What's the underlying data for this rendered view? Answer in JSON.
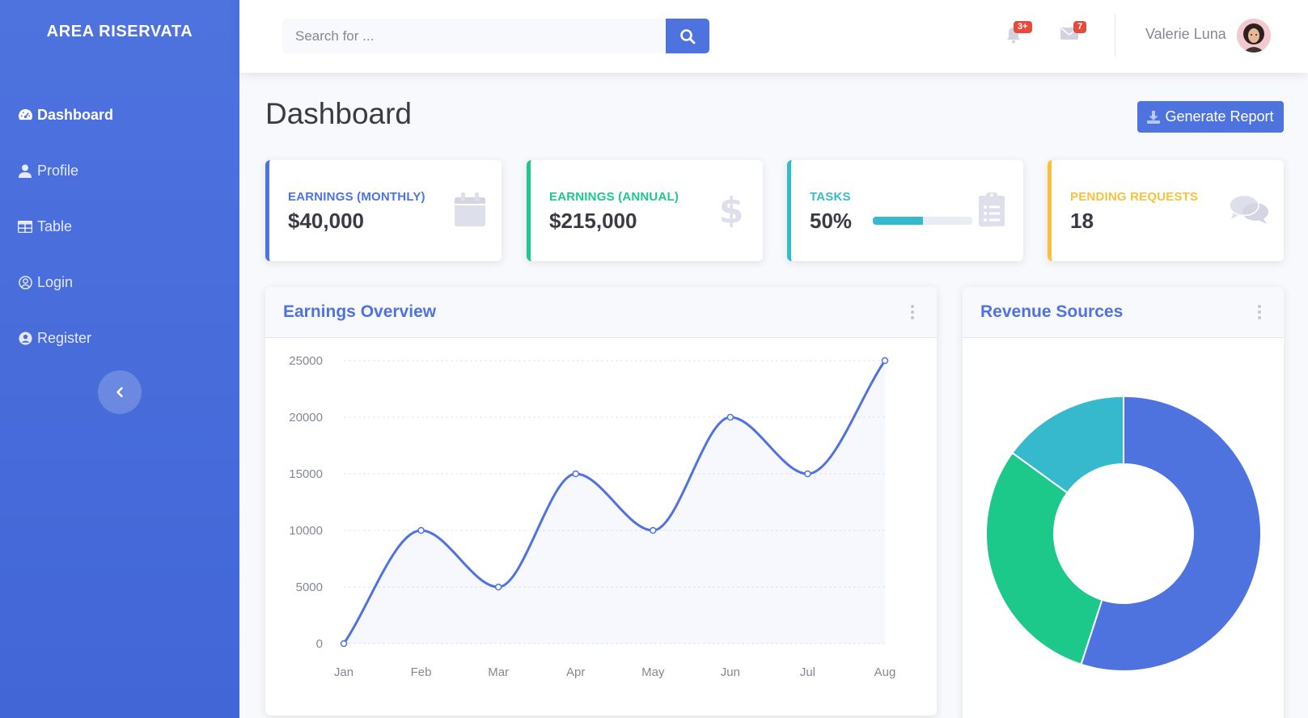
{
  "sidebar": {
    "brand": "AREA RISERVATA",
    "items": [
      {
        "label": "Dashboard",
        "icon": "tachometer-icon",
        "active": true
      },
      {
        "label": "Profile",
        "icon": "user-icon",
        "active": false
      },
      {
        "label": "Table",
        "icon": "table-icon",
        "active": false
      },
      {
        "label": "Login",
        "icon": "user-circle-outline-icon",
        "active": false
      },
      {
        "label": "Register",
        "icon": "user-circle-icon",
        "active": false
      }
    ],
    "toggle_icon": "chevron-left-icon"
  },
  "topbar": {
    "search_placeholder": "Search for ...",
    "alerts_badge": "3+",
    "messages_badge": "7",
    "user_name": "Valerie Luna"
  },
  "page": {
    "title": "Dashboard",
    "report_button": "Generate Report"
  },
  "cards": [
    {
      "label": "Earnings (Monthly)",
      "value": "$40,000",
      "color": "#4e73df",
      "icon": "calendar-icon"
    },
    {
      "label": "Earnings (Annual)",
      "value": "$215,000",
      "color": "#1cc88a",
      "icon": "dollar-icon"
    },
    {
      "label": "Tasks",
      "value": "50%",
      "color": "#36b9cc",
      "icon": "clipboard-list-icon",
      "progress": 50
    },
    {
      "label": "Pending Requests",
      "value": "18",
      "color": "#f6c23e",
      "icon": "comments-icon"
    }
  ],
  "panels": {
    "earnings_title": "Earnings Overview",
    "revenue_title": "Revenue Sources"
  },
  "chart_data": [
    {
      "type": "area",
      "categories": [
        "Jan",
        "Feb",
        "Mar",
        "Apr",
        "May",
        "Jun",
        "Jul",
        "Aug"
      ],
      "values": [
        0,
        10000,
        5000,
        15000,
        10000,
        20000,
        15000,
        25000
      ],
      "yticks": [
        0,
        5000,
        10000,
        15000,
        20000,
        25000
      ],
      "ylim": [
        0,
        25000
      ],
      "grid": true,
      "color": "#4e73df"
    },
    {
      "type": "pie",
      "donut": true,
      "values": [
        55,
        30,
        15
      ],
      "colors": [
        "#4e73df",
        "#1cc88a",
        "#36b9cc"
      ]
    }
  ]
}
